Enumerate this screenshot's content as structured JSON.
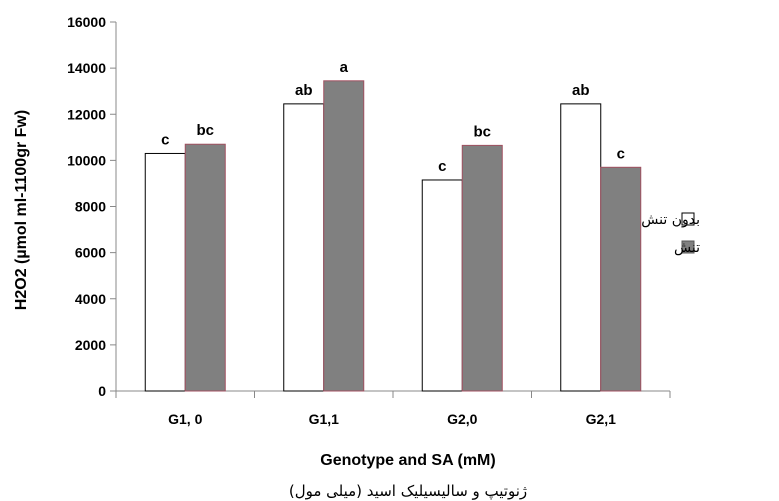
{
  "chart_data": {
    "type": "bar",
    "categories": [
      "G1, 0",
      "G1,1",
      "G2,0",
      "G2,1"
    ],
    "series": [
      {
        "name": "بدون تنش",
        "values": [
          10300,
          12450,
          9150,
          12450
        ],
        "labels": [
          "c",
          "ab",
          "c",
          "ab"
        ],
        "color": "#ffffff"
      },
      {
        "name": "تنش",
        "values": [
          10700,
          13450,
          10650,
          9700
        ],
        "labels": [
          "bc",
          "a",
          "bc",
          "c"
        ],
        "color": "#808080"
      }
    ],
    "ylim": [
      0,
      16000
    ],
    "yticks": [
      0,
      2000,
      4000,
      6000,
      8000,
      10000,
      12000,
      14000,
      16000
    ],
    "xlabel": "Genotype and SA (mM)",
    "xlabel_fa": "ژنوتیپ و سالیسیلیک اسید (میلی مول)",
    "ylabel": "H2O2 (µmol ml-1100gr Fw)",
    "legend_position": "right",
    "legend_labels": [
      "بدون تنش",
      "تنش"
    ],
    "grid": false
  }
}
